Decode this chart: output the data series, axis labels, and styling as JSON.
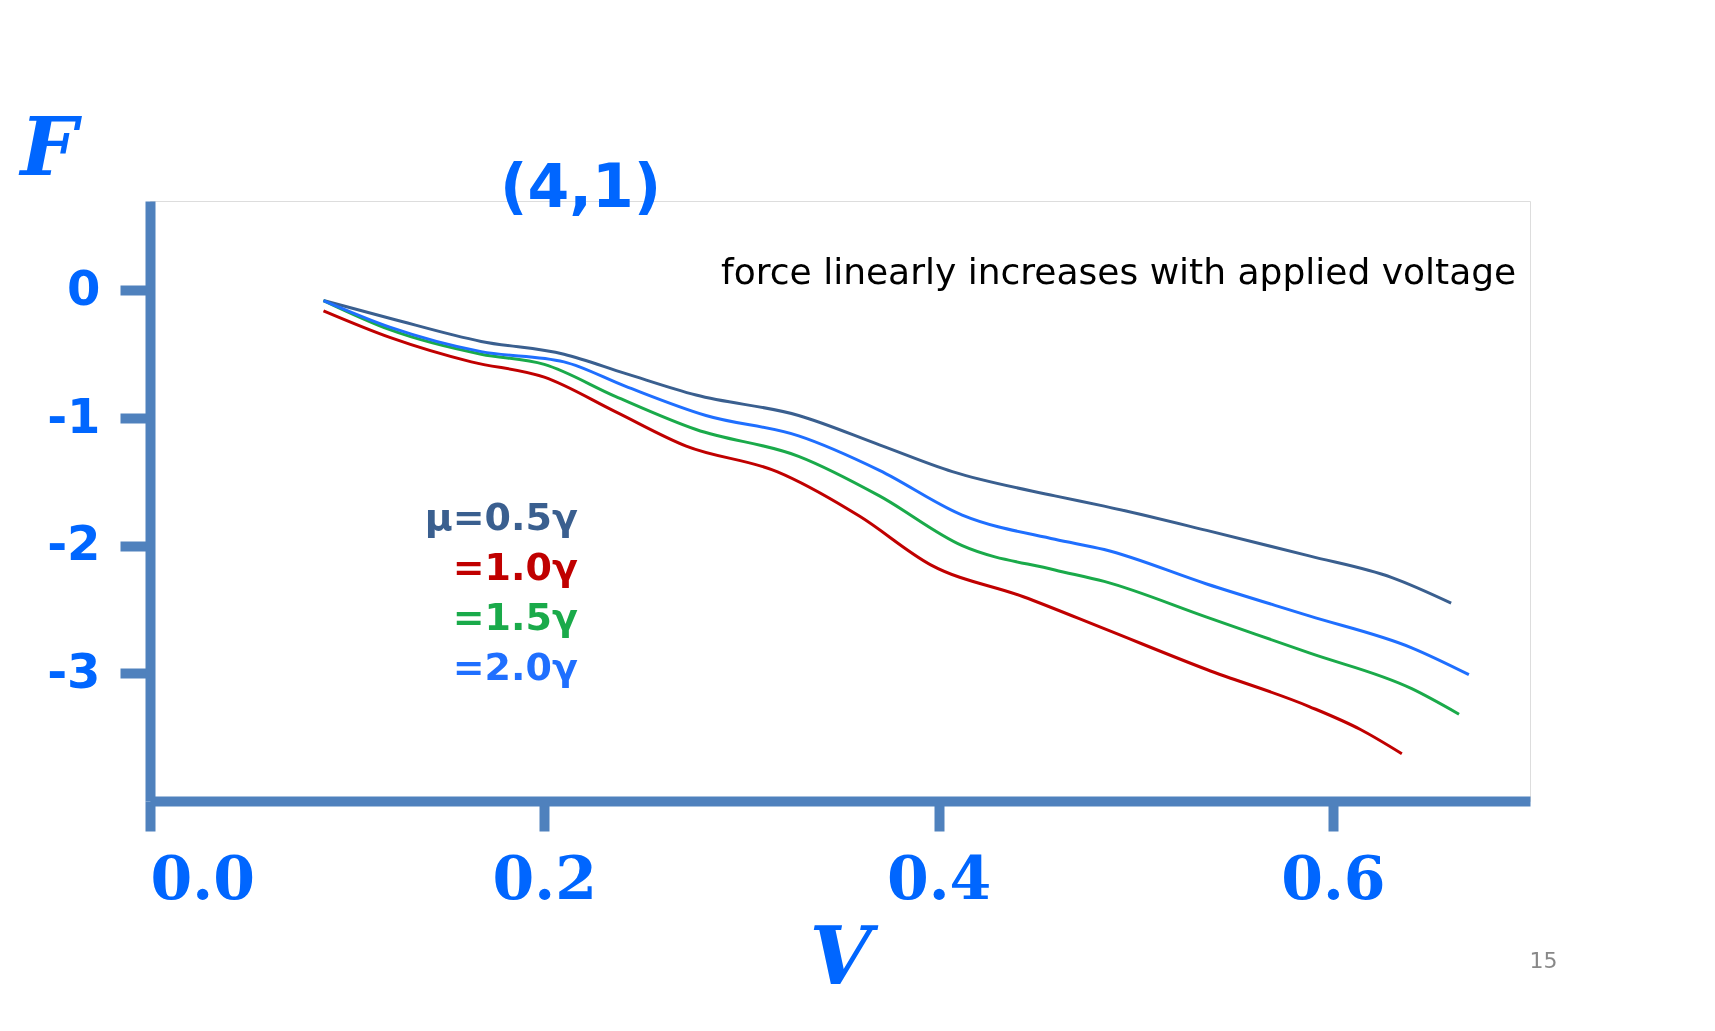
{
  "chart_data": {
    "type": "line",
    "title": "(4,1)",
    "xlabel": "V",
    "ylabel": "F",
    "xlim": [
      0,
      0.7
    ],
    "ylim": [
      -4,
      0.7
    ],
    "xticks": [
      {
        "value": 0,
        "label": "0.0"
      },
      {
        "value": 0.2,
        "label": "0.2"
      },
      {
        "value": 0.4,
        "label": "0.4"
      },
      {
        "value": 0.6,
        "label": "0.6"
      }
    ],
    "yticks": [
      0,
      -1,
      -2,
      -3
    ],
    "grid": false,
    "legend": "left",
    "marker": "none",
    "line_style": "solid",
    "annotations": [
      "force linearly increases with applied voltage",
      "15"
    ],
    "series": [
      {
        "name": "μ=0.5γ",
        "color": "#3a5f8f",
        "x": [
          0.088,
          0.122,
          0.168,
          0.21,
          0.241,
          0.277,
          0.329,
          0.37,
          0.407,
          0.459,
          0.484,
          0.536,
          0.588,
          0.63,
          0.66
        ],
        "values": [
          -0.08,
          -0.22,
          -0.4,
          -0.5,
          -0.65,
          -0.82,
          -0.98,
          -1.21,
          -1.42,
          -1.61,
          -1.69,
          -1.88,
          -2.08,
          -2.25,
          -2.45
        ]
      },
      {
        "name": "=1.0γ",
        "color": "#c00000",
        "x": [
          0.088,
          0.122,
          0.163,
          0.2,
          0.236,
          0.272,
          0.318,
          0.36,
          0.396,
          0.443,
          0.484,
          0.536,
          0.588,
          0.614,
          0.635
        ],
        "values": [
          -0.16,
          -0.37,
          -0.56,
          -0.68,
          -0.95,
          -1.22,
          -1.42,
          -1.77,
          -2.15,
          -2.4,
          -2.65,
          -2.97,
          -3.26,
          -3.44,
          -3.63
        ]
      },
      {
        "name": "=1.5γ",
        "color": "#1aaa4a",
        "x": [
          0.088,
          0.122,
          0.168,
          0.2,
          0.236,
          0.277,
          0.329,
          0.37,
          0.412,
          0.459,
          0.484,
          0.536,
          0.588,
          0.64,
          0.664
        ],
        "values": [
          -0.08,
          -0.31,
          -0.5,
          -0.58,
          -0.83,
          -1.09,
          -1.3,
          -1.61,
          -2.0,
          -2.19,
          -2.28,
          -2.56,
          -2.84,
          -3.12,
          -3.32
        ]
      },
      {
        "name": "=2.0γ",
        "color": "#1f6fff",
        "x": [
          0.088,
          0.122,
          0.168,
          0.21,
          0.241,
          0.282,
          0.329,
          0.37,
          0.412,
          0.459,
          0.484,
          0.536,
          0.588,
          0.64,
          0.669
        ],
        "values": [
          -0.08,
          -0.29,
          -0.48,
          -0.56,
          -0.75,
          -0.98,
          -1.14,
          -1.41,
          -1.76,
          -1.95,
          -2.03,
          -2.3,
          -2.55,
          -2.8,
          -3.01
        ]
      }
    ]
  }
}
